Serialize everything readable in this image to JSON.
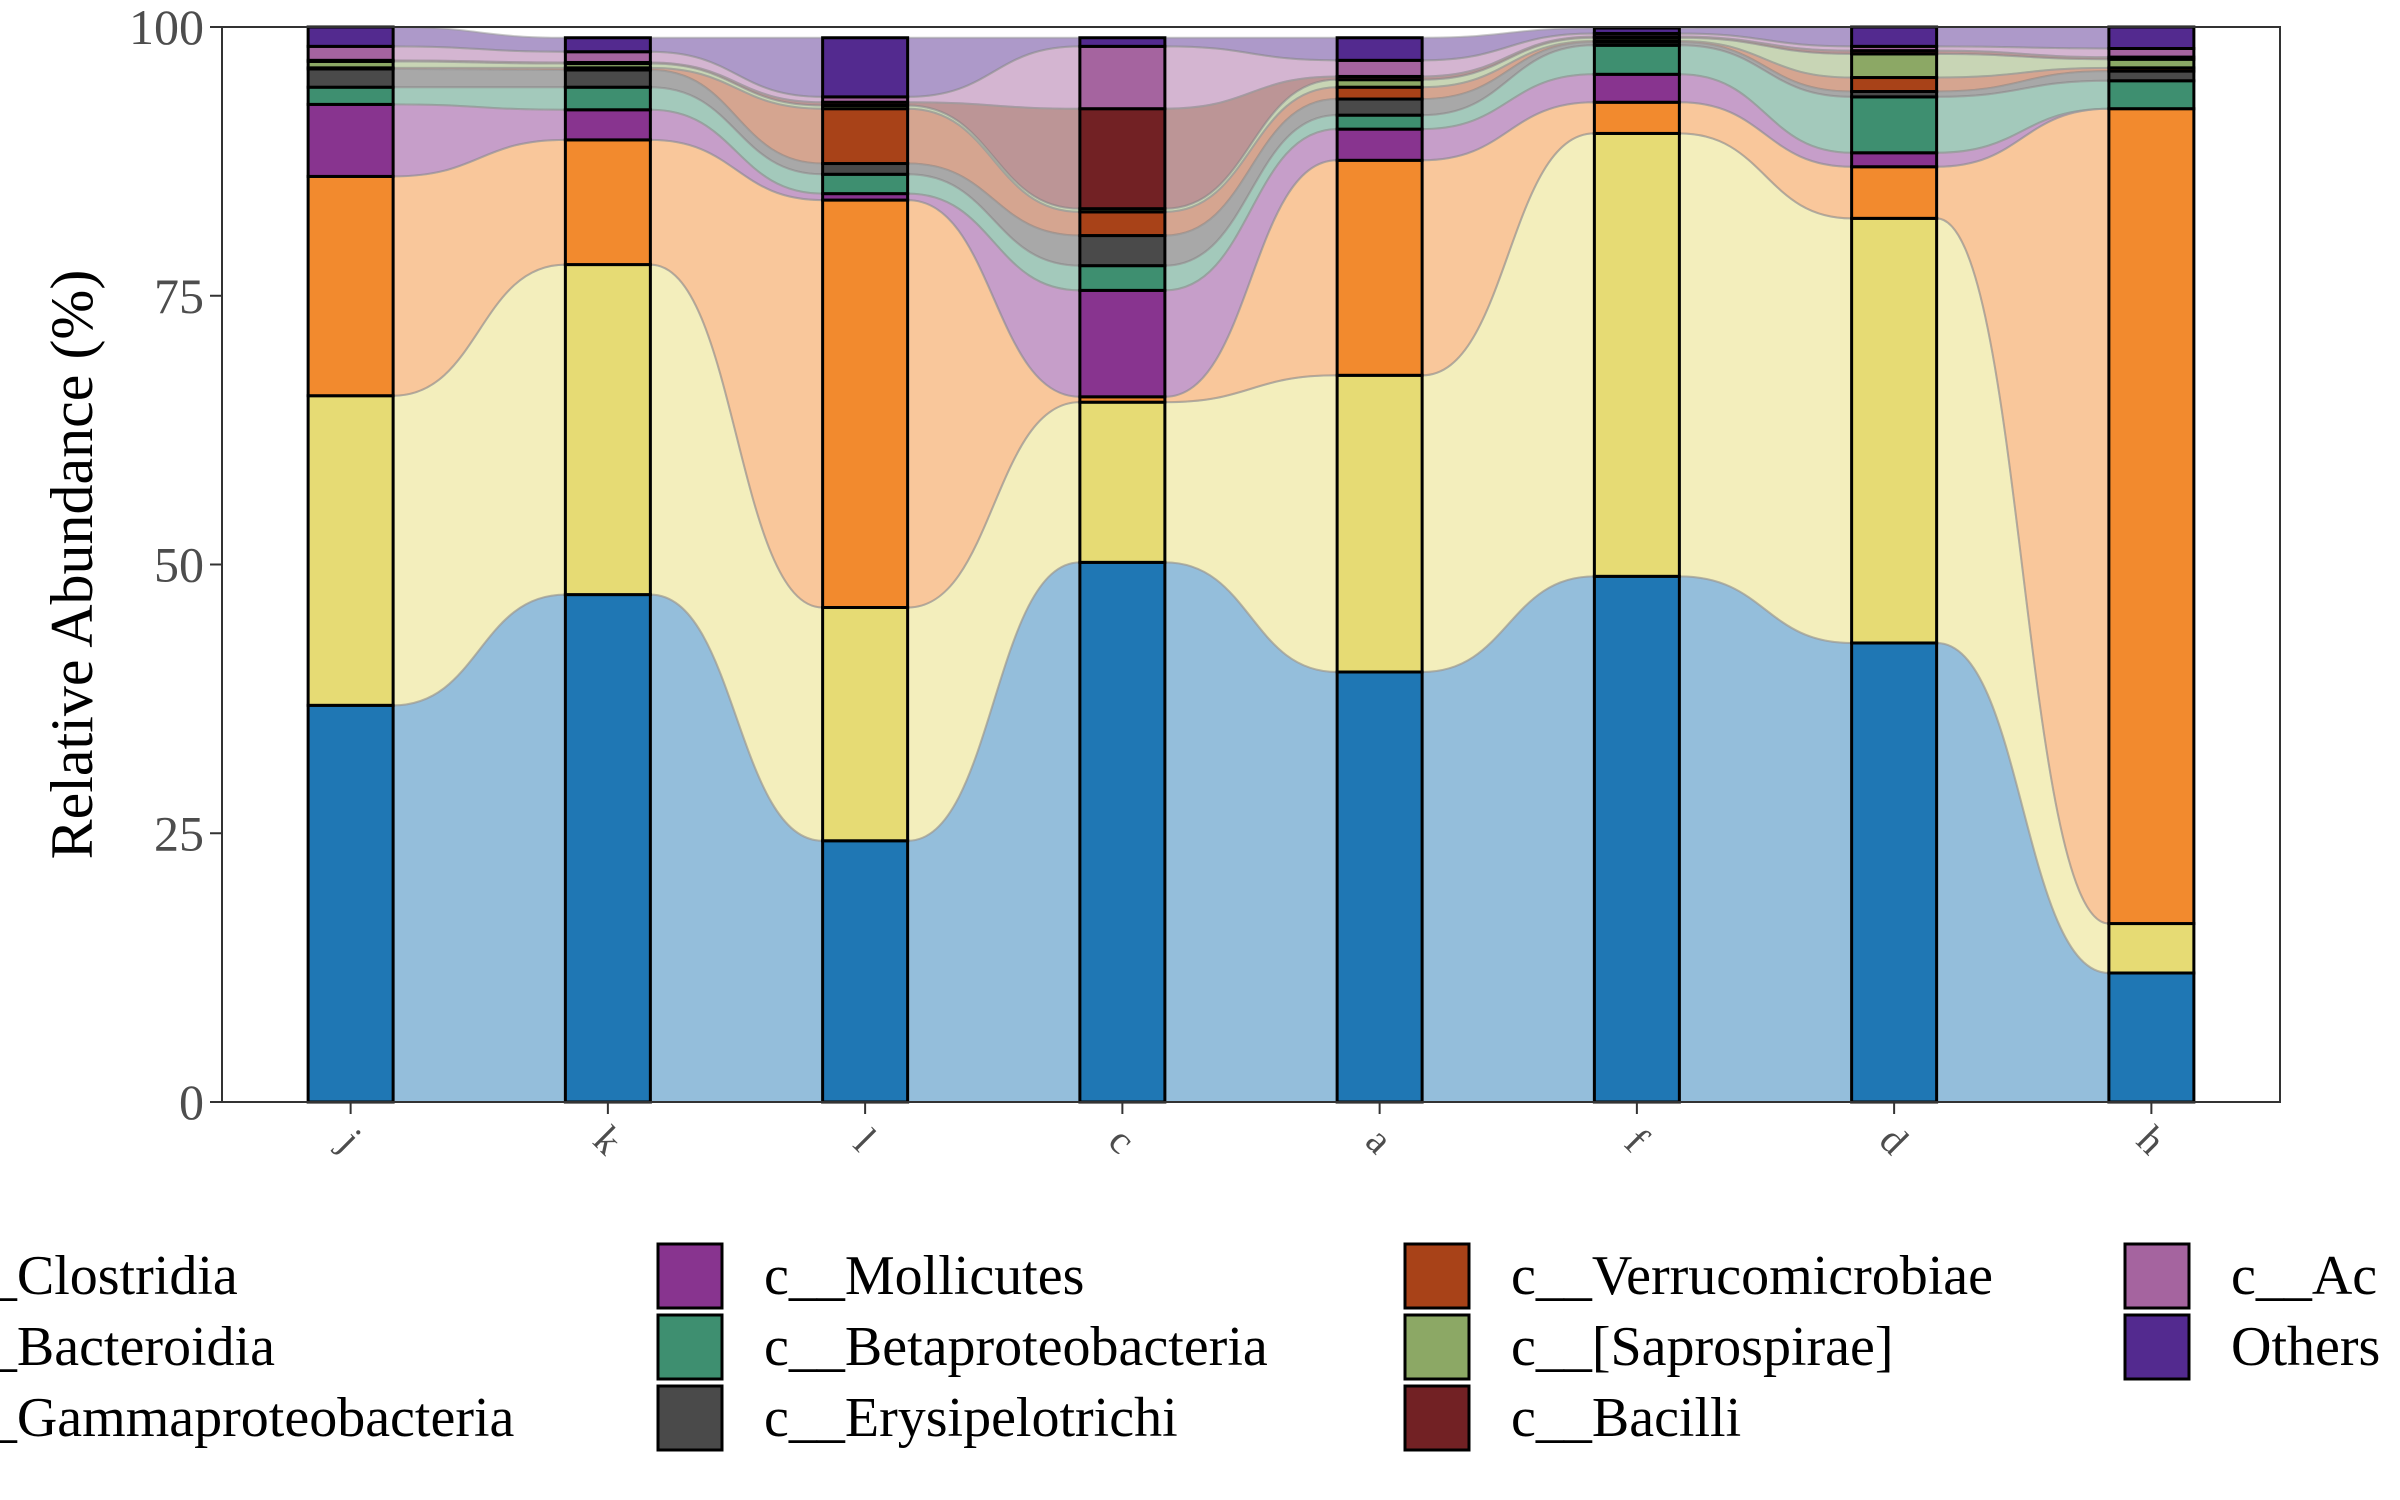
{
  "chart_data": {
    "type": "bar",
    "subtype": "stacked-bar-with-alluvial-flows",
    "ylabel": "Relative Abundance (%)",
    "xlabel": "",
    "ylim": [
      0,
      100
    ],
    "yticks": [
      0,
      25,
      50,
      75,
      100
    ],
    "grid": false,
    "legend_position": "bottom",
    "categories": [
      "j",
      "k",
      "l",
      "c",
      "a",
      "f",
      "d",
      "h"
    ],
    "series": [
      {
        "name": "c__Clostridia",
        "color": "#1F77B4",
        "values": [
          36.9,
          47.2,
          24.3,
          50.2,
          40.0,
          48.9,
          42.7,
          12.0
        ]
      },
      {
        "name": "c__Bacteroidia",
        "color": "#E6DB74",
        "values": [
          28.8,
          30.7,
          21.7,
          14.9,
          27.6,
          41.2,
          39.5,
          4.6
        ]
      },
      {
        "name": "c__Gammaproteobacteria",
        "color": "#F28A2E",
        "values": [
          20.4,
          11.6,
          37.9,
          0.5,
          20.0,
          2.9,
          4.8,
          75.8
        ]
      },
      {
        "name": "c__Mollicutes",
        "color": "#88348F",
        "values": [
          6.7,
          2.8,
          0.6,
          9.9,
          2.9,
          2.6,
          1.3,
          0.0
        ]
      },
      {
        "name": "c__Betaproteobacteria",
        "color": "#3E8F70",
        "values": [
          1.6,
          2.1,
          1.8,
          2.3,
          1.3,
          2.7,
          5.2,
          2.6
        ]
      },
      {
        "name": "c__Erysipelotrichi",
        "color": "#4A4A4A",
        "values": [
          1.7,
          1.6,
          1.0,
          2.8,
          1.5,
          0.3,
          0.5,
          0.9
        ]
      },
      {
        "name": "c__Verrucomicrobiae",
        "color": "#A84218",
        "values": [
          0.1,
          0.2,
          5.1,
          2.2,
          1.1,
          0.1,
          1.3,
          0.3
        ]
      },
      {
        "name": "c__[Saprospirae]",
        "color": "#8CA865",
        "values": [
          0.6,
          0.4,
          0.3,
          0.3,
          0.7,
          0.3,
          2.2,
          0.8
        ]
      },
      {
        "name": "c__Bacilli",
        "color": "#722124",
        "values": [
          0.1,
          0.1,
          0.3,
          9.3,
          0.3,
          0.1,
          0.3,
          0.2
        ]
      },
      {
        "name": "c__Ac",
        "color": "#A5649F",
        "values": [
          1.3,
          1.0,
          0.5,
          5.8,
          1.5,
          0.3,
          0.4,
          0.8
        ]
      },
      {
        "name": "Others",
        "color": "#532A8F",
        "values": [
          1.8,
          1.3,
          5.5,
          0.8,
          2.1,
          0.5,
          1.8,
          2.0
        ]
      }
    ]
  }
}
